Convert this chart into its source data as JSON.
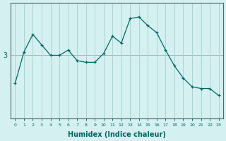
{
  "x": [
    0,
    1,
    2,
    3,
    4,
    5,
    6,
    7,
    8,
    9,
    10,
    11,
    12,
    13,
    14,
    15,
    16,
    17,
    18,
    19,
    20,
    21,
    22,
    23
  ],
  "y": [
    2.2,
    3.1,
    3.6,
    3.3,
    3.0,
    3.0,
    3.15,
    2.85,
    2.8,
    2.8,
    3.05,
    3.55,
    3.35,
    4.05,
    4.1,
    3.85,
    3.65,
    3.15,
    2.7,
    2.35,
    2.1,
    2.05,
    2.05,
    1.85
  ],
  "xlabel": "Humidex (Indice chaleur)",
  "ylabel": "",
  "line_color": "#006666",
  "marker": "+",
  "marker_size": 3,
  "bg_color": "#d5f0f0",
  "grid_color": "#aad4d4",
  "ytick_value": 3.0,
  "ytick_label": "3",
  "xlim": [
    -0.5,
    23.5
  ],
  "ylim": [
    1.2,
    4.5
  ]
}
